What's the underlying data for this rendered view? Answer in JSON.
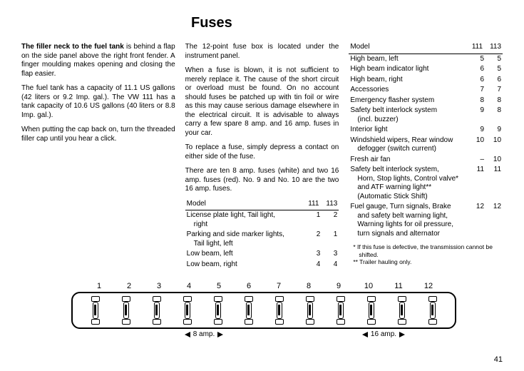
{
  "title": "Fuses",
  "page_number": "41",
  "col1": {
    "p1_lead": "The filler neck to the fuel tank",
    "p1_rest": " is behind a flap on the side panel above the right front fender. A finger moulding makes opening and closing the flap easier.",
    "p2": "The fuel tank has a capacity of 11.1 US gallons (42 liters or 9.2 Imp. gal.). The VW 111 has a tank capacity of 10.6 US gallons (40 liters or 8.8 Imp. gal.).",
    "p3": "When putting the cap back on, turn the threaded filler cap until you hear a click."
  },
  "col2": {
    "p1": "The 12-point fuse box is located under the instrument panel.",
    "p2": "When a fuse is blown, it is not sufficient to merely replace it. The cause of the short circuit or overload must be found. On no account should fuses be patched up with tin foil or wire as this may cause serious damage elsewhere in the electrical circuit. It is advisable to always carry a few spare 8 amp. and 16 amp. fuses in your car.",
    "p3": "To replace a fuse, simply depress a contact on either side of the fuse.",
    "p4": "There are ten 8 amp. fuses (white) and two 16 amp. fuses (red). No. 9 and No. 10 are the two 16 amp. fuses."
  },
  "table_header": {
    "model": "Model",
    "c1": "111",
    "c2": "113"
  },
  "table_left": [
    {
      "label": "License plate light, Tail light,",
      "label2": "right",
      "v1": "1",
      "v2": "2"
    },
    {
      "label": "Parking and side marker lights,",
      "label2": "Tail light, left",
      "v1": "2",
      "v2": "1"
    },
    {
      "label": "Low beam, left",
      "v1": "3",
      "v2": "3"
    },
    {
      "label": "Low beam, right",
      "v1": "4",
      "v2": "4"
    }
  ],
  "table_right": [
    {
      "label": "High beam, left",
      "v1": "5",
      "v2": "5"
    },
    {
      "label": "High beam indicator light",
      "v1": "6",
      "v2": "5"
    },
    {
      "label": "High beam, right",
      "v1": "6",
      "v2": "6"
    },
    {
      "label": "Accessories",
      "v1": "7",
      "v2": "7"
    },
    {
      "label": "Emergency flasher system",
      "v1": "8",
      "v2": "8"
    },
    {
      "label": "Safety belt interlock system",
      "label2": "(incl. buzzer)",
      "v1": "9",
      "v2": "8"
    },
    {
      "label": "Interior light",
      "v1": "9",
      "v2": "9"
    },
    {
      "label": "Windshield wipers, Rear window",
      "label2": "defogger (switch current)",
      "v1": "10",
      "v2": "10"
    },
    {
      "label": "Fresh air fan",
      "v1": "–",
      "v2": "10"
    },
    {
      "label": "Safety belt interlock system,",
      "label2": "Horn, Stop lights, Control valve*",
      "label3": "and ATF warning light**",
      "label4": "(Automatic Stick Shift)",
      "v1": "11",
      "v2": "11"
    },
    {
      "label": "Fuel gauge, Turn signals, Brake",
      "label2": "and safety belt warning light,",
      "label3": "Warning lights for oil pressure,",
      "label4": "turn signals and alternator",
      "v1": "12",
      "v2": "12"
    }
  ],
  "footnotes": {
    "f1": "* If this fuse is defective, the transmission cannot be shifted.",
    "f2": "** Trailer hauling only."
  },
  "diagram": {
    "slot_numbers": [
      "1",
      "2",
      "3",
      "4",
      "5",
      "6",
      "7",
      "8",
      "9",
      "10",
      "11",
      "12"
    ],
    "amp8": "8 amp.",
    "amp16": "16 amp."
  }
}
